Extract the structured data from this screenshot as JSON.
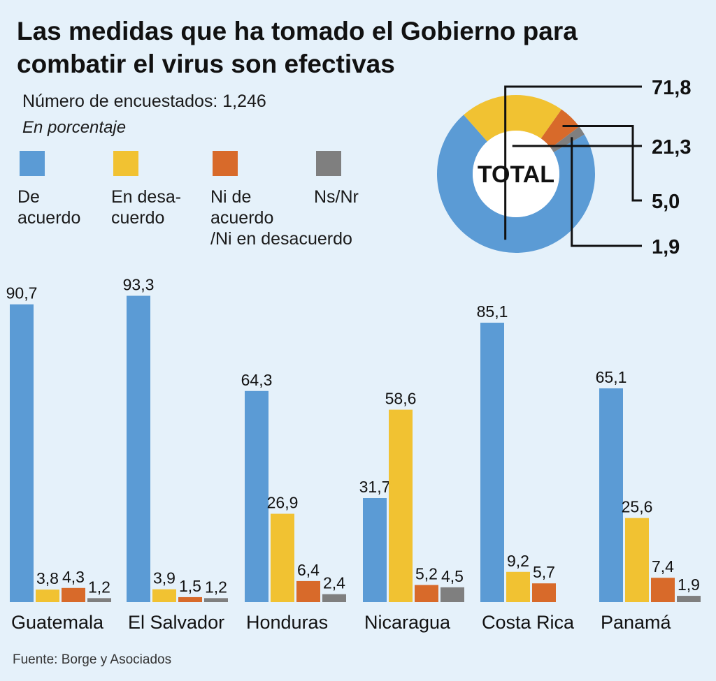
{
  "title_lines": [
    "Las medidas que ha tomado el Gobierno para",
    "combatir el virus son efectivas"
  ],
  "subtitle": "Número de encuestados: 1,246",
  "unit_note": "En porcentaje",
  "legend": [
    {
      "label_lines": [
        "De",
        "acuerdo"
      ],
      "color": "#5b9bd5"
    },
    {
      "label_lines": [
        "En desa-",
        "cuerdo"
      ],
      "color": "#f1c232"
    },
    {
      "label_lines": [
        "Ni de",
        "acuerdo",
        "/Ni en desacuerdo"
      ],
      "color": "#d86a2a"
    },
    {
      "label_lines": [
        "Ns/Nr"
      ],
      "color": "#7f7f7f"
    }
  ],
  "source": "Fuente: Borge y Asociados",
  "chart_data": [
    {
      "type": "pie",
      "center_label": "TOTAL",
      "slices": [
        {
          "category": "De acuerdo",
          "value": 71.8,
          "label": "71,8",
          "color": "#5b9bd5"
        },
        {
          "category": "En desacuerdo",
          "value": 21.3,
          "label": "21,3",
          "color": "#f1c232"
        },
        {
          "category": "Ni de acuerdo /Ni en desacuerdo",
          "value": 5.0,
          "label": "5,0",
          "color": "#d86a2a"
        },
        {
          "category": "Ns/Nr",
          "value": 1.9,
          "label": "1,9",
          "color": "#7f7f7f"
        }
      ]
    },
    {
      "type": "bar",
      "categories": [
        "Guatemala",
        "El Salvador",
        "Honduras",
        "Nicaragua",
        "Costa Rica",
        "Panamá"
      ],
      "series": [
        {
          "name": "De acuerdo",
          "color": "#5b9bd5",
          "values": [
            90.7,
            93.3,
            64.3,
            31.7,
            85.1,
            65.1
          ],
          "labels": [
            "90,7",
            "93,3",
            "64,3",
            "31,7",
            "85,1",
            "65,1"
          ]
        },
        {
          "name": "En desacuerdo",
          "color": "#f1c232",
          "values": [
            3.8,
            3.9,
            26.9,
            58.6,
            9.2,
            25.6
          ],
          "labels": [
            "3,8",
            "3,9",
            "26,9",
            "58,6",
            "9,2",
            "25,6"
          ]
        },
        {
          "name": "Ni de acuerdo /Ni en desacuerdo",
          "color": "#d86a2a",
          "values": [
            4.3,
            1.5,
            6.4,
            5.2,
            5.7,
            7.4
          ],
          "labels": [
            "4,3",
            "1,5",
            "6,4",
            "5,2",
            "5,7",
            "7,4"
          ]
        },
        {
          "name": "Ns/Nr",
          "color": "#7f7f7f",
          "values": [
            1.2,
            1.2,
            2.4,
            4.5,
            null,
            1.9
          ],
          "labels": [
            "1,2",
            "1,2",
            "2,4",
            "4,5",
            "",
            "1,9"
          ]
        }
      ],
      "ylim": [
        0,
        100
      ],
      "grid": false
    }
  ]
}
